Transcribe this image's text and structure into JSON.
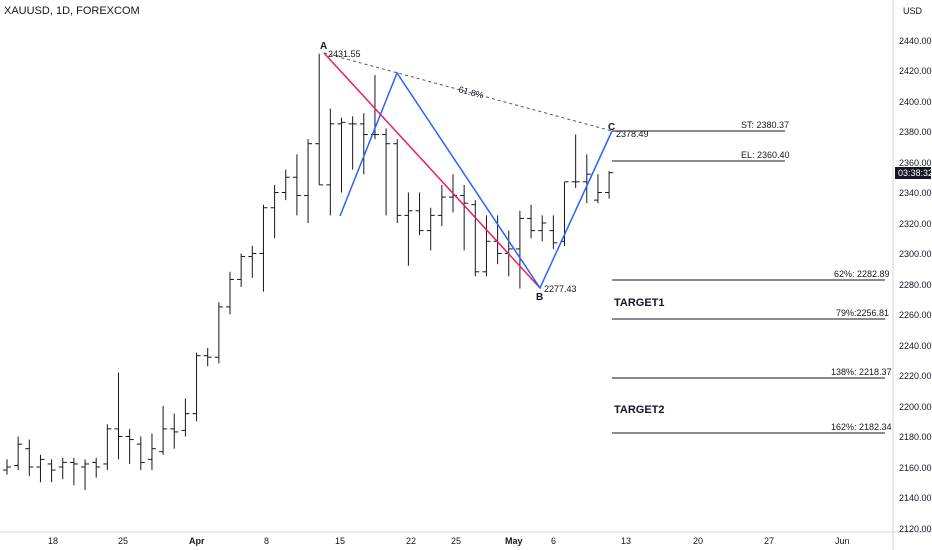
{
  "header": {
    "symbol": "XAUUSD, 1D, FOREXCOM",
    "currency": "USD"
  },
  "price_axis": {
    "ticks": [
      "2440.00",
      "2420.00",
      "2400.00",
      "2380.00",
      "2360.00",
      "2340.00",
      "2320.00",
      "2300.00",
      "2280.00",
      "2260.00",
      "2240.00",
      "2220.00",
      "2200.00",
      "2180.00",
      "2160.00",
      "2140.00",
      "2120.00"
    ],
    "countdown": "03:38:32"
  },
  "time_axis": {
    "labels": [
      "18",
      "25",
      "Apr",
      "8",
      "15",
      "22",
      "25",
      "May",
      "6",
      "13",
      "20",
      "27",
      "Jun"
    ]
  },
  "pattern": {
    "A": {
      "letter": "A",
      "value": "2431.55"
    },
    "B": {
      "letter": "B",
      "value": "2277.43"
    },
    "C": {
      "letter": "C",
      "value": "2378.49"
    },
    "retracement": "61.8%"
  },
  "levels": {
    "st": "ST: 2380.37",
    "el": "EL: 2360.40",
    "fib62": "62%: 2282.89",
    "fib79": "79%:2256.81",
    "fib138": "138%: 2218.37",
    "fib162": "162%: 2182.34",
    "target1": "TARGET1",
    "target2": "TARGET2"
  },
  "colors": {
    "pattern_red": "#e91e63",
    "pattern_blue": "#2962ff",
    "bars": "#131722",
    "grid_border": "#131722"
  },
  "chart_data": {
    "type": "ohlc",
    "symbol": "XAUUSD",
    "timeframe": "1D",
    "ylim": [
      2120,
      2450
    ],
    "bars": [
      {
        "o": 2158,
        "h": 2165,
        "l": 2155,
        "c": 2160
      },
      {
        "o": 2161,
        "h": 2180,
        "l": 2158,
        "c": 2175
      },
      {
        "o": 2172,
        "h": 2178,
        "l": 2154,
        "c": 2160
      },
      {
        "o": 2160,
        "h": 2168,
        "l": 2150,
        "c": 2165
      },
      {
        "o": 2162,
        "h": 2165,
        "l": 2150,
        "c": 2158
      },
      {
        "o": 2160,
        "h": 2166,
        "l": 2152,
        "c": 2163
      },
      {
        "o": 2163,
        "h": 2166,
        "l": 2148,
        "c": 2162
      },
      {
        "o": 2160,
        "h": 2165,
        "l": 2145,
        "c": 2162
      },
      {
        "o": 2163,
        "h": 2166,
        "l": 2153,
        "c": 2160
      },
      {
        "o": 2162,
        "h": 2188,
        "l": 2158,
        "c": 2185
      },
      {
        "o": 2185,
        "h": 2222,
        "l": 2165,
        "c": 2180
      },
      {
        "o": 2180,
        "h": 2185,
        "l": 2162,
        "c": 2178
      },
      {
        "o": 2175,
        "h": 2180,
        "l": 2158,
        "c": 2163
      },
      {
        "o": 2165,
        "h": 2182,
        "l": 2158,
        "c": 2172
      },
      {
        "o": 2170,
        "h": 2200,
        "l": 2168,
        "c": 2185
      },
      {
        "o": 2185,
        "h": 2195,
        "l": 2172,
        "c": 2183
      },
      {
        "o": 2184,
        "h": 2205,
        "l": 2180,
        "c": 2195
      },
      {
        "o": 2195,
        "h": 2235,
        "l": 2190,
        "c": 2233
      },
      {
        "o": 2233,
        "h": 2238,
        "l": 2226,
        "c": 2232
      },
      {
        "o": 2232,
        "h": 2268,
        "l": 2228,
        "c": 2265
      },
      {
        "o": 2265,
        "h": 2288,
        "l": 2260,
        "c": 2283
      },
      {
        "o": 2283,
        "h": 2300,
        "l": 2278,
        "c": 2298
      },
      {
        "o": 2298,
        "h": 2305,
        "l": 2284,
        "c": 2300
      },
      {
        "o": 2300,
        "h": 2332,
        "l": 2275,
        "c": 2330
      },
      {
        "o": 2330,
        "h": 2345,
        "l": 2310,
        "c": 2340
      },
      {
        "o": 2340,
        "h": 2355,
        "l": 2335,
        "c": 2350
      },
      {
        "o": 2350,
        "h": 2365,
        "l": 2325,
        "c": 2338
      },
      {
        "o": 2338,
        "h": 2375,
        "l": 2320,
        "c": 2372
      },
      {
        "o": 2372,
        "h": 2431,
        "l": 2345,
        "c": 2345
      },
      {
        "o": 2345,
        "h": 2395,
        "l": 2325,
        "c": 2385
      },
      {
        "o": 2385,
        "h": 2389,
        "l": 2340,
        "c": 2386
      },
      {
        "o": 2385,
        "h": 2390,
        "l": 2355,
        "c": 2385
      },
      {
        "o": 2385,
        "h": 2392,
        "l": 2352,
        "c": 2378
      },
      {
        "o": 2378,
        "h": 2417,
        "l": 2375,
        "c": 2378
      },
      {
        "o": 2378,
        "h": 2382,
        "l": 2325,
        "c": 2372
      },
      {
        "o": 2372,
        "h": 2375,
        "l": 2320,
        "c": 2325
      },
      {
        "o": 2325,
        "h": 2340,
        "l": 2292,
        "c": 2328
      },
      {
        "o": 2328,
        "h": 2340,
        "l": 2312,
        "c": 2315
      },
      {
        "o": 2315,
        "h": 2330,
        "l": 2302,
        "c": 2325
      },
      {
        "o": 2325,
        "h": 2345,
        "l": 2318,
        "c": 2337
      },
      {
        "o": 2337,
        "h": 2352,
        "l": 2327,
        "c": 2338
      },
      {
        "o": 2338,
        "h": 2345,
        "l": 2302,
        "c": 2333
      },
      {
        "o": 2332,
        "h": 2335,
        "l": 2285,
        "c": 2288
      },
      {
        "o": 2288,
        "h": 2325,
        "l": 2285,
        "c": 2308
      },
      {
        "o": 2308,
        "h": 2325,
        "l": 2293,
        "c": 2300
      },
      {
        "o": 2300,
        "h": 2315,
        "l": 2285,
        "c": 2303
      },
      {
        "o": 2303,
        "h": 2328,
        "l": 2277,
        "c": 2323
      },
      {
        "o": 2323,
        "h": 2332,
        "l": 2310,
        "c": 2315
      },
      {
        "o": 2315,
        "h": 2325,
        "l": 2308,
        "c": 2320
      },
      {
        "o": 2315,
        "h": 2325,
        "l": 2303,
        "c": 2307
      },
      {
        "o": 2308,
        "h": 2347,
        "l": 2305,
        "c": 2347
      },
      {
        "o": 2347,
        "h": 2378,
        "l": 2343,
        "c": 2347
      },
      {
        "o": 2347,
        "h": 2365,
        "l": 2333,
        "c": 2352
      },
      {
        "o": 2335,
        "h": 2352,
        "l": 2333,
        "c": 2340
      },
      {
        "o": 2340,
        "h": 2354,
        "l": 2336,
        "c": 2353
      }
    ]
  }
}
